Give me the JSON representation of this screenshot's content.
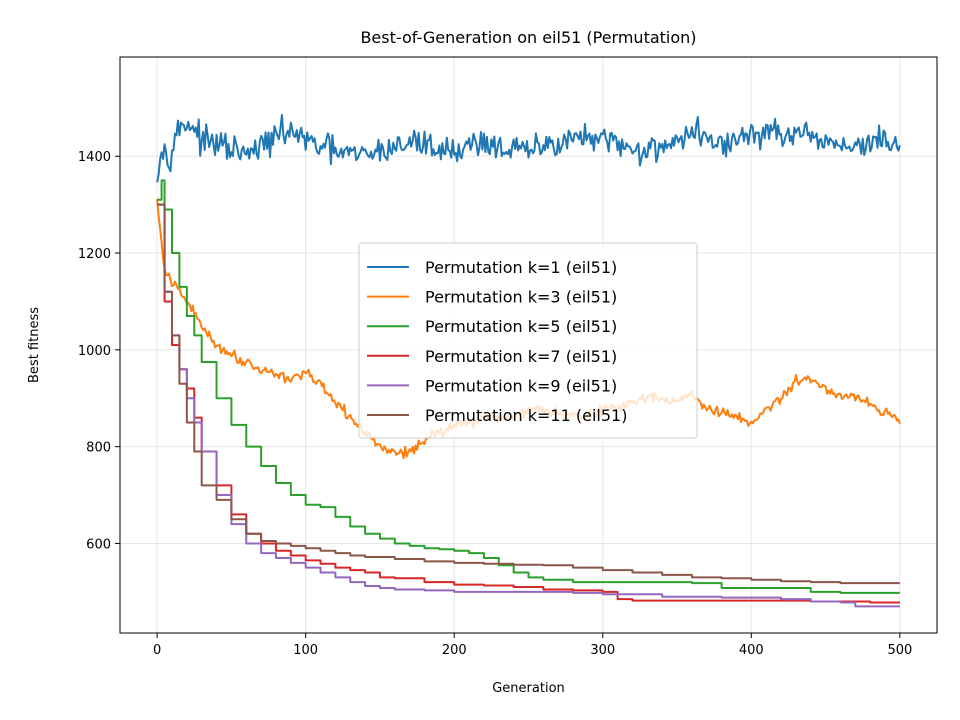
{
  "chart_data": {
    "type": "line",
    "title": "Best-of-Generation on eil51 (Permutation)",
    "xlabel": "Generation",
    "ylabel": "Best fitness",
    "xlim": [
      -25,
      525
    ],
    "ylim": [
      415,
      1605
    ],
    "xticks": [
      0,
      100,
      200,
      300,
      400,
      500
    ],
    "yticks": [
      600,
      800,
      1000,
      1200,
      1400
    ],
    "grid": true,
    "legend_position": "center",
    "series": [
      {
        "name": "Permutation k=1 (eil51)",
        "color": "#1f77b4",
        "style": "noisy",
        "x": [
          0,
          3,
          8,
          12,
          16,
          20,
          25,
          30,
          40,
          50,
          60,
          70,
          80,
          90,
          100,
          110,
          120,
          135,
          150,
          160,
          175,
          190,
          200,
          210,
          220,
          235,
          250,
          265,
          280,
          300,
          315,
          330,
          350,
          365,
          380,
          395,
          410,
          430,
          450,
          470,
          485,
          500
        ],
        "y": [
          1350,
          1415,
          1400,
          1440,
          1460,
          1470,
          1460,
          1430,
          1425,
          1415,
          1400,
          1420,
          1440,
          1455,
          1430,
          1420,
          1410,
          1400,
          1410,
          1420,
          1430,
          1415,
          1410,
          1425,
          1430,
          1415,
          1410,
          1425,
          1440,
          1430,
          1420,
          1410,
          1435,
          1450,
          1420,
          1440,
          1450,
          1440,
          1430,
          1420,
          1430,
          1425
        ],
        "amp": 42
      },
      {
        "name": "Permutation k=3 (eil51)",
        "color": "#ff7f0e",
        "style": "noisy",
        "x": [
          0,
          5,
          10,
          15,
          20,
          30,
          40,
          50,
          60,
          70,
          80,
          90,
          100,
          110,
          120,
          130,
          140,
          150,
          160,
          170,
          180,
          190,
          200,
          210,
          220,
          230,
          240,
          250,
          260,
          270,
          280,
          290,
          300,
          310,
          320,
          330,
          340,
          350,
          360,
          370,
          380,
          390,
          400,
          410,
          420,
          430,
          440,
          450,
          460,
          470,
          480,
          490,
          500
        ],
        "y": [
          1310,
          1160,
          1140,
          1120,
          1100,
          1050,
          1010,
          990,
          975,
          960,
          950,
          940,
          955,
          925,
          890,
          860,
          830,
          800,
          785,
          790,
          815,
          830,
          845,
          850,
          860,
          860,
          865,
          875,
          880,
          870,
          865,
          870,
          875,
          880,
          890,
          905,
          900,
          895,
          905,
          880,
          870,
          860,
          850,
          875,
          900,
          935,
          940,
          920,
          905,
          905,
          890,
          870,
          850
        ],
        "amp": 16
      },
      {
        "name": "Permutation k=5 (eil51)",
        "color": "#2ca02c",
        "style": "step",
        "x": [
          0,
          3,
          5,
          10,
          15,
          20,
          25,
          30,
          40,
          50,
          60,
          70,
          80,
          90,
          100,
          110,
          120,
          130,
          140,
          150,
          160,
          170,
          180,
          190,
          200,
          210,
          220,
          230,
          240,
          250,
          260,
          280,
          300,
          320,
          340,
          360,
          380,
          400,
          420,
          440,
          460,
          480,
          500
        ],
        "y": [
          1310,
          1350,
          1290,
          1200,
          1130,
          1070,
          1030,
          975,
          900,
          845,
          800,
          760,
          725,
          700,
          680,
          675,
          655,
          635,
          620,
          610,
          600,
          595,
          590,
          588,
          585,
          580,
          570,
          555,
          540,
          530,
          525,
          520,
          520,
          520,
          520,
          518,
          508,
          508,
          508,
          500,
          498,
          498,
          498
        ],
        "amp": 0
      },
      {
        "name": "Permutation k=7 (eil51)",
        "color": "#d62728",
        "style": "step",
        "x": [
          0,
          5,
          10,
          15,
          20,
          25,
          30,
          40,
          50,
          60,
          70,
          80,
          90,
          100,
          110,
          120,
          130,
          140,
          150,
          160,
          180,
          200,
          220,
          240,
          260,
          280,
          300,
          310,
          320,
          340,
          360,
          380,
          400,
          420,
          440,
          460,
          480,
          500
        ],
        "y": [
          1300,
          1100,
          1010,
          960,
          920,
          860,
          790,
          720,
          660,
          620,
          600,
          585,
          575,
          565,
          558,
          550,
          545,
          540,
          530,
          528,
          520,
          515,
          513,
          510,
          505,
          503,
          500,
          485,
          482,
          482,
          482,
          482,
          482,
          482,
          480,
          480,
          478,
          478
        ],
        "amp": 0
      },
      {
        "name": "Permutation k=9 (eil51)",
        "color": "#9467bd",
        "style": "step",
        "x": [
          0,
          5,
          10,
          15,
          20,
          25,
          30,
          40,
          50,
          60,
          70,
          80,
          90,
          100,
          110,
          120,
          130,
          140,
          150,
          160,
          180,
          200,
          220,
          240,
          260,
          280,
          300,
          320,
          340,
          360,
          380,
          400,
          420,
          440,
          460,
          470,
          480,
          500
        ],
        "y": [
          1300,
          1120,
          1030,
          960,
          900,
          850,
          790,
          700,
          640,
          600,
          580,
          570,
          560,
          550,
          540,
          530,
          520,
          512,
          508,
          505,
          503,
          500,
          500,
          500,
          500,
          498,
          495,
          495,
          490,
          490,
          488,
          488,
          485,
          480,
          478,
          470,
          470,
          470
        ],
        "amp": 0
      },
      {
        "name": "Permutation k=11 (eil51)",
        "color": "#8c564b",
        "style": "step",
        "x": [
          0,
          5,
          10,
          15,
          20,
          25,
          30,
          40,
          50,
          60,
          70,
          80,
          90,
          100,
          110,
          120,
          130,
          140,
          160,
          180,
          200,
          220,
          240,
          260,
          280,
          300,
          320,
          340,
          360,
          380,
          400,
          420,
          440,
          460,
          480,
          500
        ],
        "y": [
          1300,
          1120,
          1030,
          930,
          850,
          790,
          720,
          690,
          650,
          620,
          605,
          600,
          595,
          590,
          585,
          580,
          575,
          572,
          568,
          563,
          560,
          558,
          556,
          555,
          550,
          545,
          540,
          535,
          530,
          528,
          525,
          522,
          520,
          518,
          518,
          518
        ],
        "amp": 0
      }
    ]
  }
}
